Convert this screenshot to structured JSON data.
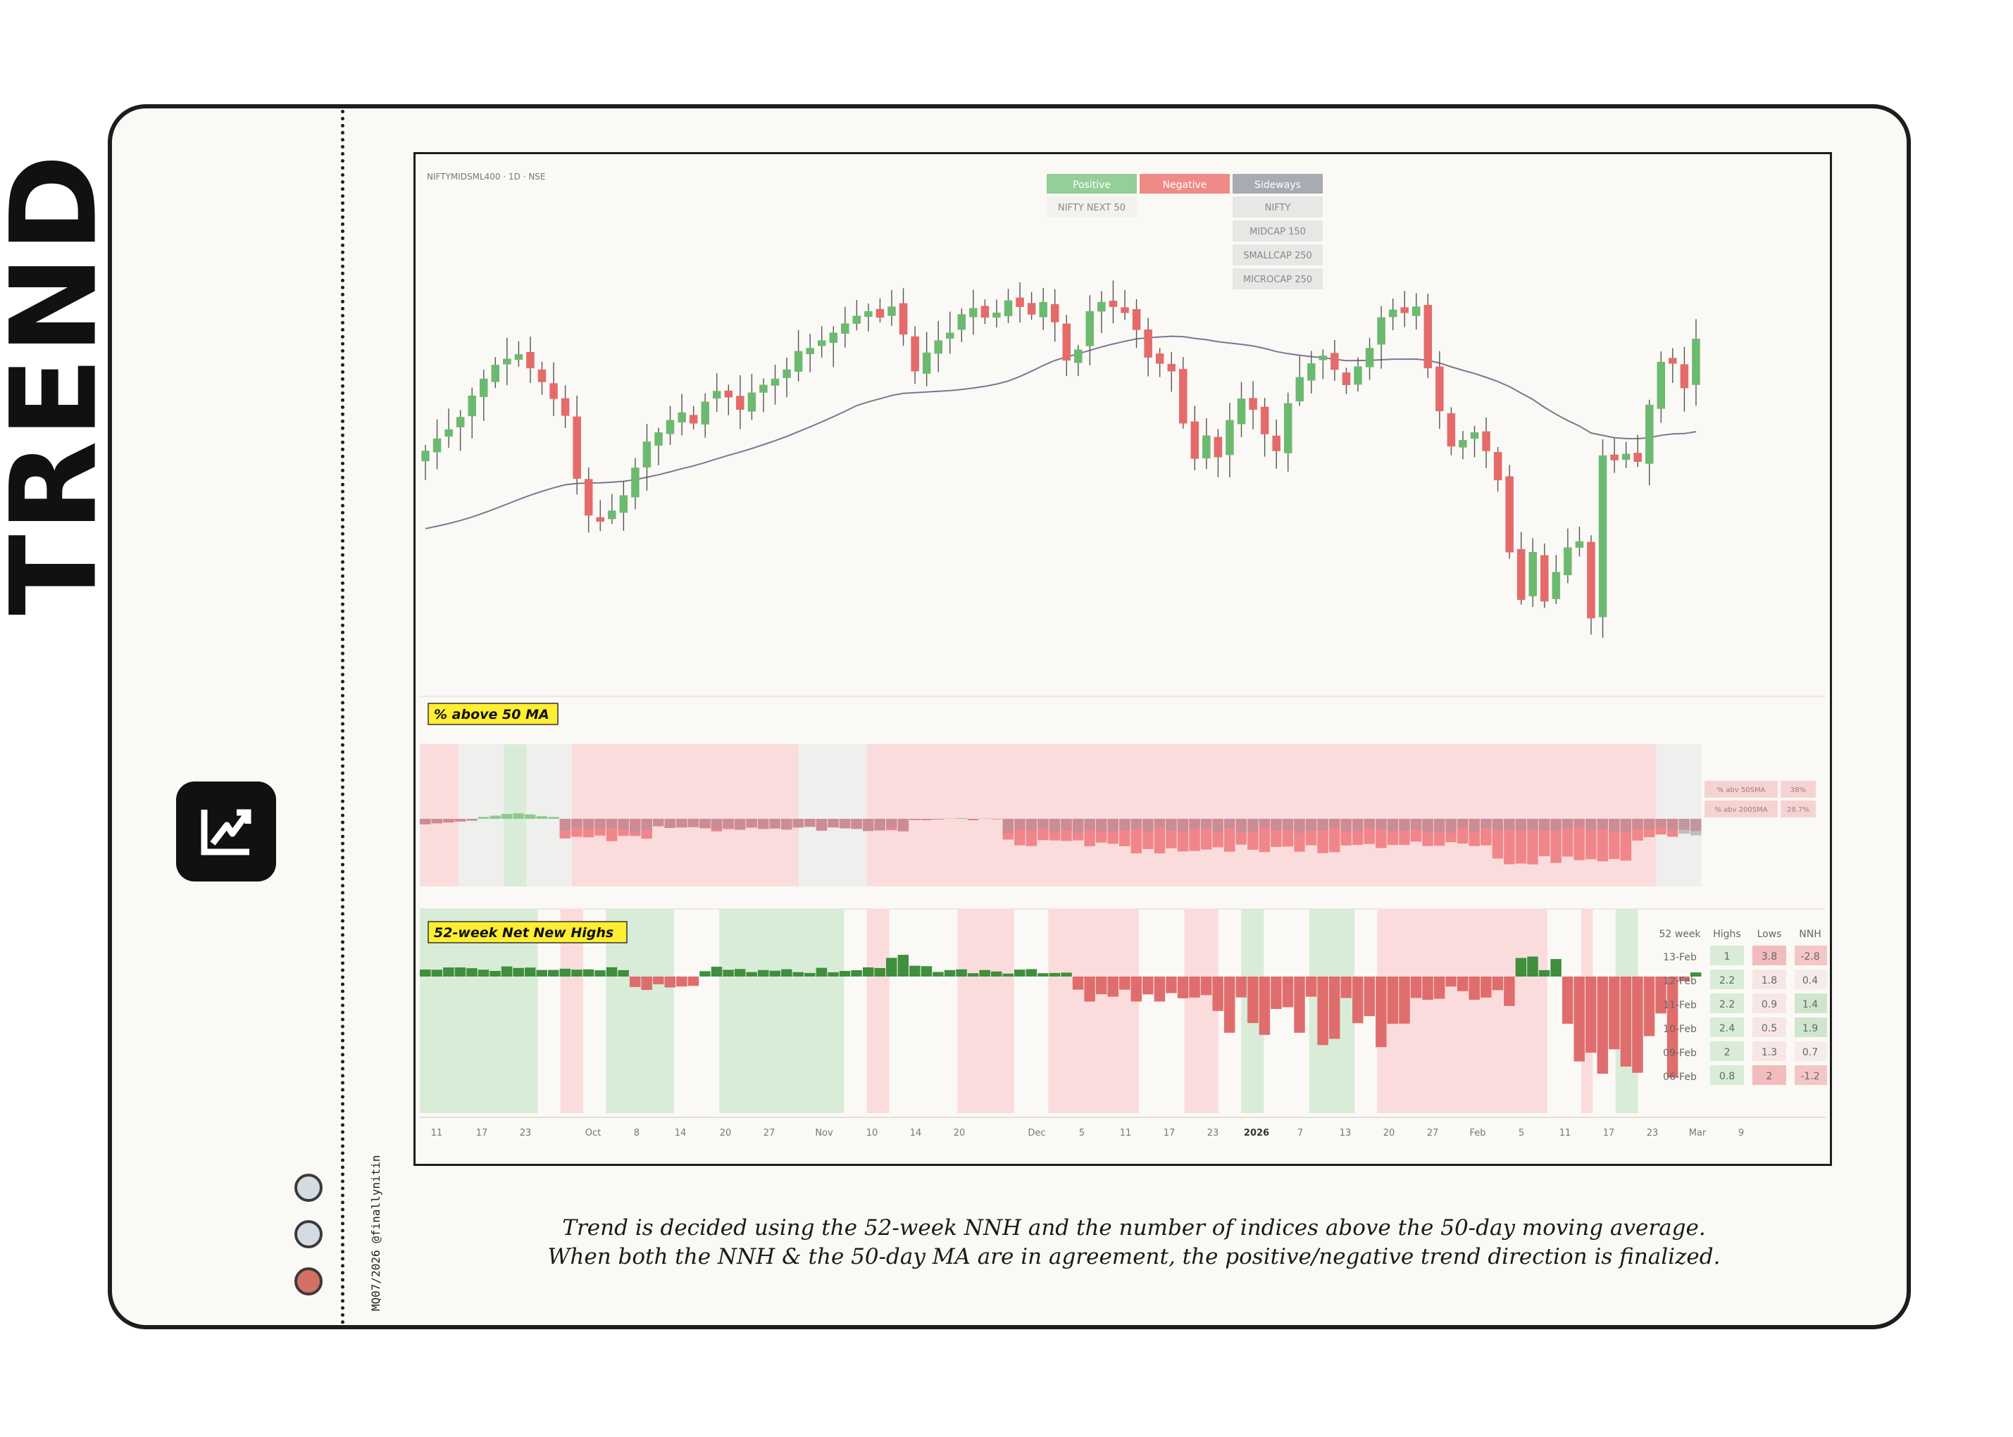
{
  "title": "TREND",
  "credit": "MQ07/2026 @finallynitin",
  "caption": {
    "line1": "Trend is decided using the 52-week NNH and the number of indices above the 50-day moving average.",
    "line2": "When both the NNH & the 50-day MA are in agreement, the positive/negative trend direction is finalized."
  },
  "colors": {
    "positive": "#93cf96",
    "negative": "#f08a86",
    "sideways": "#a8abb3",
    "up_candle": "#6cba70",
    "down_candle": "#e56a6a",
    "bar_positive": "#3f8f3c",
    "bar_negative": "#e06d6d",
    "bg_positive": "#d9ecd8",
    "bg_negative": "#fbdcdc",
    "bg_sideways": "#efefee",
    "ma": "#7b7790",
    "highlight": "#ffee32"
  },
  "chart_data": [
    {
      "type": "candlestick",
      "symbol": "NIFTYMIDSML400 · 1D · NSE",
      "ma_period": 50,
      "legend": {
        "headers": [
          "Positive",
          "Negative",
          "Sideways"
        ],
        "positive": [
          "NIFTY NEXT 50"
        ],
        "negative": [],
        "sideways": [
          "NIFTY",
          "MIDCAP 150",
          "SMALLCAP 250",
          "MICROCAP 250"
        ]
      },
      "x_ticks": [
        "11",
        "17",
        "23",
        "Oct",
        "8",
        "14",
        "20",
        "27",
        "Nov",
        "10",
        "14",
        "20",
        "Dec",
        "5",
        "11",
        "17",
        "23",
        "2026",
        "7",
        "13",
        "20",
        "27",
        "Feb",
        "5",
        "11",
        "17",
        "23",
        "Mar",
        "9"
      ],
      "closes": [
        104.2,
        105.0,
        105.6,
        106.4,
        107.8,
        108.9,
        109.8,
        110.2,
        110.5,
        109.6,
        108.7,
        107.6,
        106.5,
        102.4,
        100.0,
        99.6,
        100.3,
        101.3,
        103.1,
        104.8,
        105.4,
        106.2,
        106.7,
        106.0,
        107.4,
        108.1,
        107.7,
        106.9,
        108.0,
        108.5,
        108.9,
        109.5,
        110.7,
        110.9,
        111.4,
        111.9,
        112.5,
        113.0,
        113.3,
        112.9,
        113.6,
        111.8,
        109.4,
        110.6,
        111.4,
        111.9,
        113.1,
        113.5,
        112.9,
        113.2,
        114.0,
        113.6,
        113.1,
        113.9,
        112.6,
        110.1,
        110.8,
        113.3,
        113.9,
        113.6,
        113.2,
        112.1,
        110.3,
        109.9,
        109.4,
        106.0,
        103.7,
        105.2,
        103.8,
        106.2,
        107.6,
        106.9,
        105.3,
        104.2,
        107.3,
        109.0,
        109.9,
        110.4,
        109.5,
        108.5,
        109.7,
        110.9,
        112.9,
        113.4,
        113.2,
        113.6,
        109.6,
        106.8,
        104.5,
        104.9,
        105.4,
        104.2,
        102.3,
        97.6,
        94.5,
        97.6,
        94.4,
        96.3,
        97.9,
        98.3,
        93.3,
        103.9,
        103.6,
        104.0,
        103.5,
        107.2,
        110.0,
        109.9,
        108.3,
        111.5
      ],
      "panels": [
        {
          "label": "% above 50 MA",
          "table": [
            {
              "label": "% abv 50SMA",
              "value": "38%"
            },
            {
              "label": "% abv 200SMA",
              "value": "28.7%"
            }
          ]
        },
        {
          "label": "52-week Net New Highs",
          "table": {
            "headers": [
              "52 week",
              "Highs",
              "Lows",
              "NNH"
            ],
            "rows": [
              {
                "date": "13-Feb",
                "highs": "1",
                "lows": "3.8",
                "nnh": "-2.8"
              },
              {
                "date": "12-Feb",
                "highs": "2.2",
                "lows": "1.8",
                "nnh": "0.4"
              },
              {
                "date": "11-Feb",
                "highs": "2.2",
                "lows": "0.9",
                "nnh": "1.4"
              },
              {
                "date": "10-Feb",
                "highs": "2.4",
                "lows": "0.5",
                "nnh": "1.9"
              },
              {
                "date": "09-Feb",
                "highs": "2",
                "lows": "1.3",
                "nnh": "0.7"
              },
              {
                "date": "06-Feb",
                "highs": "0.8",
                "lows": "2",
                "nnh": "-1.2"
              }
            ]
          }
        }
      ]
    }
  ]
}
